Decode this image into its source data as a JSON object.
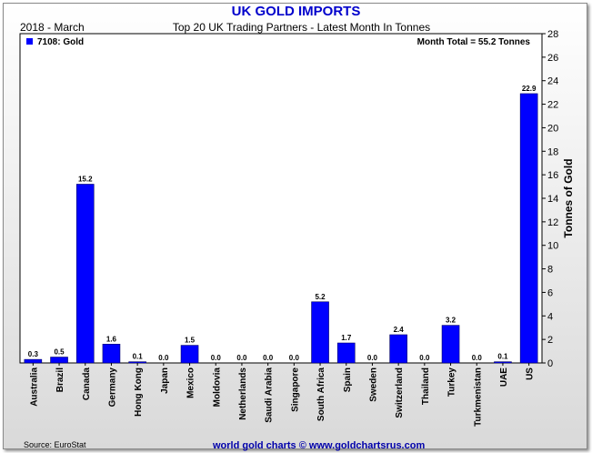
{
  "title": "UK GOLD IMPORTS",
  "period": "2018 - March",
  "subtitle": "Top 20 UK Trading Partners - Latest Month In Tonnes",
  "legend_label": "7108: Gold",
  "month_total": "Month Total = 55.2 Tonnes",
  "source": "Source: EuroStat",
  "watermark": "world gold charts © www.goldchartsrus.com",
  "colors": {
    "bar": "#0000ff",
    "title": "#0000cc",
    "watermark": "#0000aa"
  },
  "chart_data": {
    "type": "bar",
    "categories": [
      "Australia",
      "Brazil",
      "Canada",
      "Germany",
      "Hong Kong",
      "Japan",
      "Mexico",
      "Moldovia",
      "Netherlands",
      "Saudi Arabia",
      "Singapore",
      "South Africa",
      "Spain",
      "Sweden",
      "Switzerland",
      "Thailand",
      "Turkey",
      "Turkmenistan",
      "UAE",
      "US"
    ],
    "series": [
      {
        "name": "7108: Gold",
        "values": [
          0.3,
          0.5,
          15.2,
          1.6,
          0.1,
          0.0,
          1.5,
          0.0,
          0.0,
          0.0,
          0.0,
          5.2,
          1.7,
          0.0,
          2.4,
          0.0,
          3.2,
          0.0,
          0.1,
          22.9
        ]
      }
    ],
    "data_labels": [
      "0.3",
      "0.5",
      "15.2",
      "1.6",
      "0.1",
      "0.0",
      "1.5",
      "0.0",
      "0.0",
      "0.0",
      "0.0",
      "5.2",
      "1.7",
      "0.0",
      "2.4",
      "0.0",
      "3.2",
      "0.0",
      "0.1",
      "22.9"
    ],
    "ylabel": "Tonnes of Gold",
    "ylim": [
      0,
      28
    ],
    "yticks": [
      0,
      2,
      4,
      6,
      8,
      10,
      12,
      14,
      16,
      18,
      20,
      22,
      24,
      26,
      28
    ],
    "y_axis_side": "right",
    "grid": false,
    "legend_position": "top-left"
  }
}
